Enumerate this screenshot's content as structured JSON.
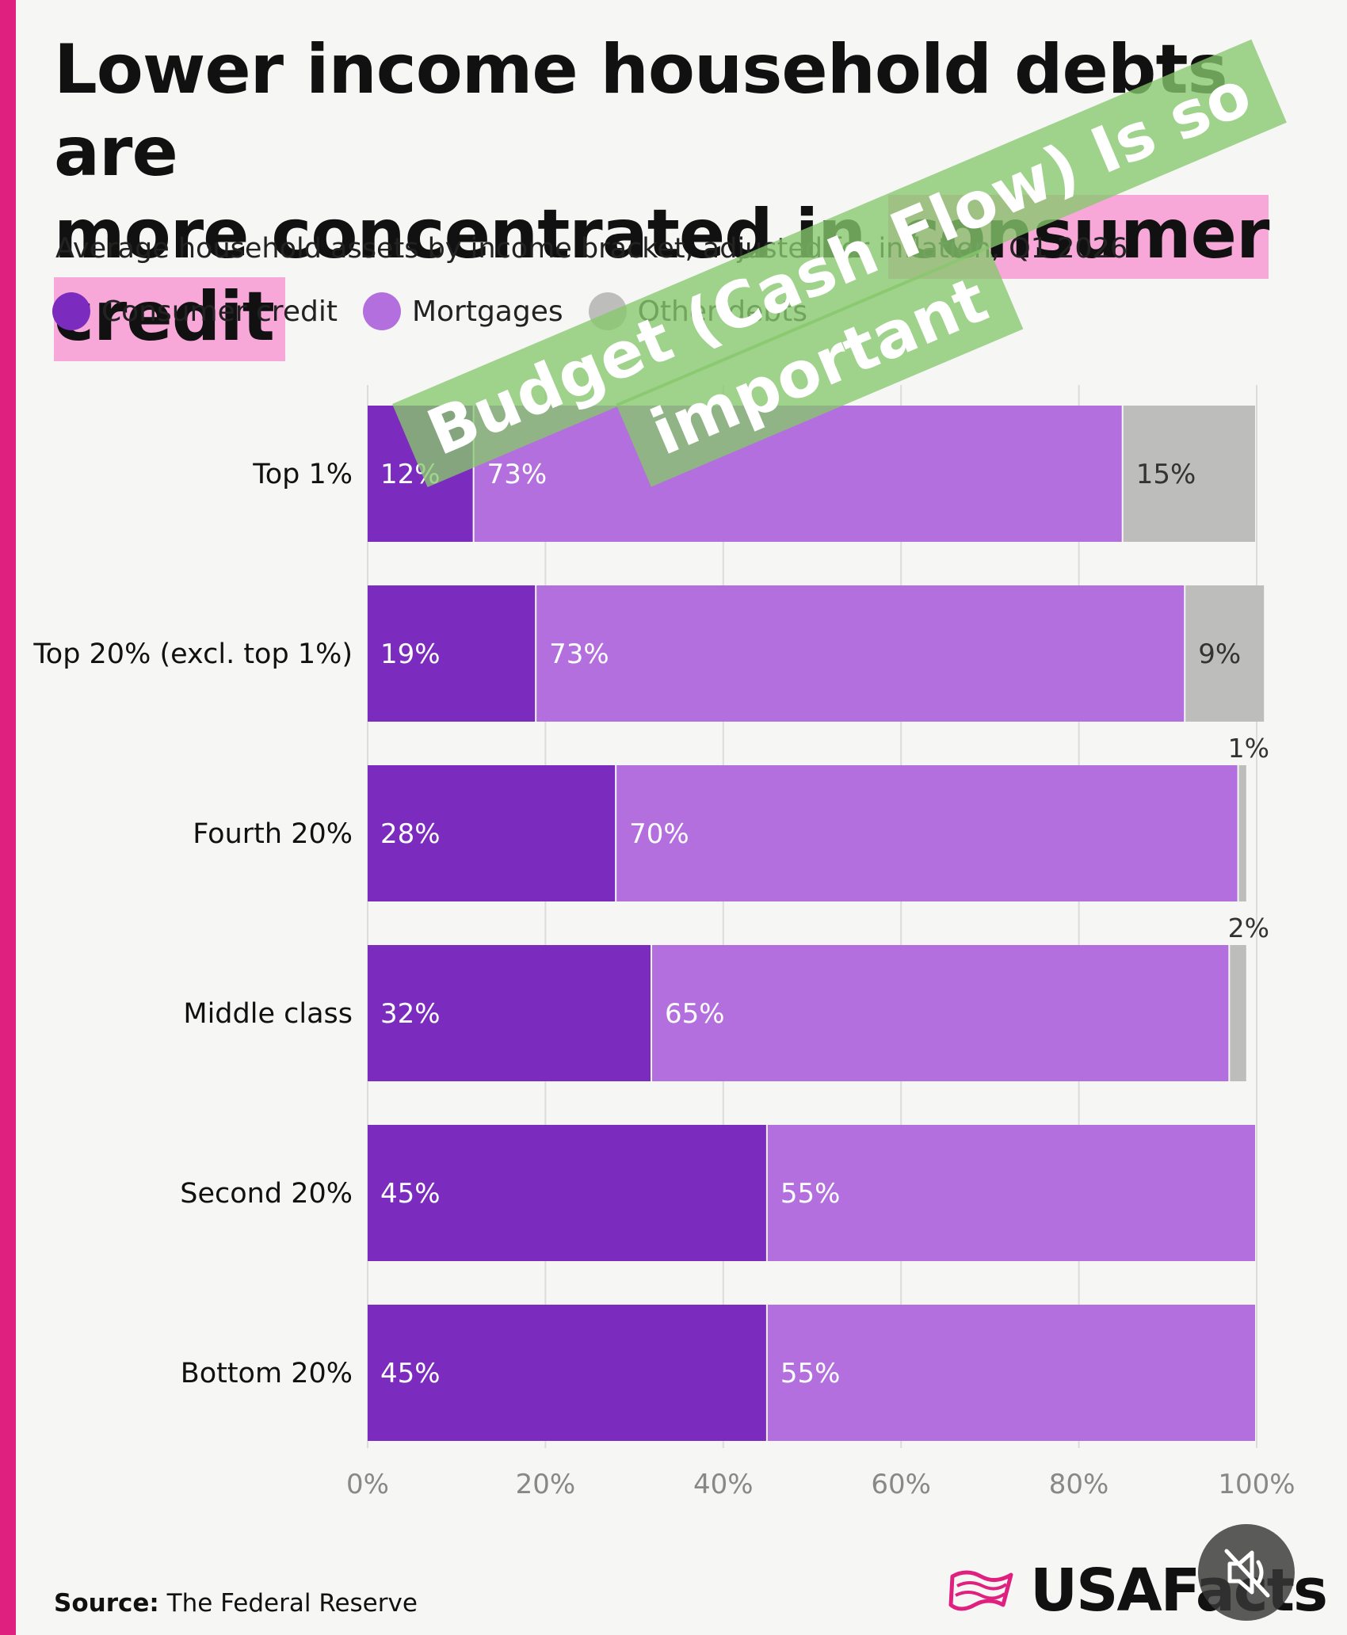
{
  "title": {
    "line1": "Lower income household debts are",
    "line2_prefix": "more concentrated in ",
    "line2_highlight": "consumer credit"
  },
  "subtitle": "Average household assets by income bracket, adjusted for inflation, Q1 2026",
  "legend": [
    {
      "label": "Consumer credit",
      "color": "#7b2cbf"
    },
    {
      "label": "Mortgages",
      "color": "#b36fdd"
    },
    {
      "label": "Other debts",
      "color": "#bdbdbb"
    }
  ],
  "chart_data": {
    "type": "bar",
    "orientation": "horizontal",
    "stacked": true,
    "categories": [
      "Top 1%",
      "Top 20% (excl. top 1%)",
      "Fourth 20%",
      "Middle class",
      "Second 20%",
      "Bottom 20%"
    ],
    "series": [
      {
        "name": "Consumer credit",
        "color": "#7b2cbf",
        "values": [
          12,
          19,
          28,
          32,
          45,
          45
        ],
        "labels": [
          "12%",
          "19%",
          "28%",
          "32%",
          "45%",
          "45%"
        ]
      },
      {
        "name": "Mortgages",
        "color": "#b36fdd",
        "values": [
          73,
          73,
          70,
          65,
          55,
          55
        ],
        "labels": [
          "73%",
          "73%",
          "70%",
          "65%",
          "55%",
          "55%"
        ]
      },
      {
        "name": "Other debts",
        "color": "#bdbdbb",
        "values": [
          15,
          9,
          1,
          2,
          0,
          0
        ],
        "labels": [
          "15%",
          "9%",
          "1%",
          "2%",
          "",
          ""
        ]
      }
    ],
    "xlim": [
      0,
      100
    ],
    "xticks": [
      "0%",
      "20%",
      "40%",
      "60%",
      "80%",
      "100%"
    ],
    "grid": true
  },
  "watermark": {
    "line1": "Budget (Cash Flow) Is so",
    "line2": "important"
  },
  "source": {
    "label": "Source:",
    "text": "The Federal Reserve"
  },
  "brand": {
    "name": "USAFacts",
    "icon": "usafacts-flag-icon"
  },
  "controls": {
    "mute_icon": "speaker-muted-icon"
  }
}
